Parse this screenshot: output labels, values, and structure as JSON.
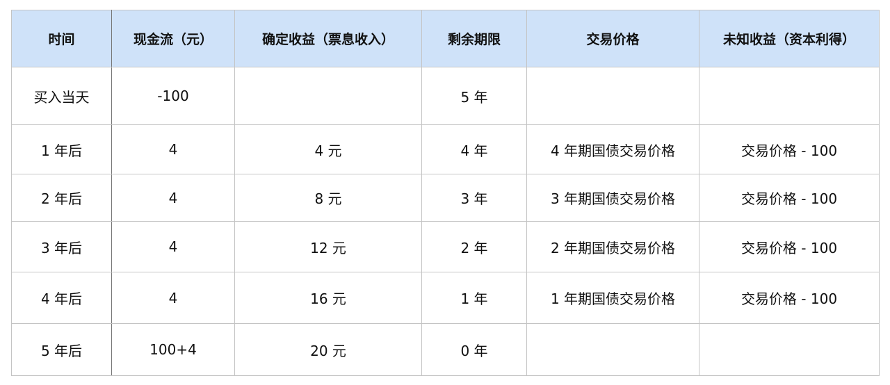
{
  "table": {
    "headers": [
      "时间",
      "现金流（元）",
      "确定收益（票息收入）",
      "剩余期限",
      "交易价格",
      "未知收益（资本利得）"
    ],
    "rows": [
      [
        "买入当天",
        "-100",
        "",
        "5 年",
        "",
        ""
      ],
      [
        "1 年后",
        "4",
        "4 元",
        "4 年",
        "4 年期国债交易价格",
        "交易价格 - 100"
      ],
      [
        "2 年后",
        "4",
        "8 元",
        "3 年",
        "3 年期国债交易价格",
        "交易价格 - 100"
      ],
      [
        "3 年后",
        "4",
        "12 元",
        "2 年",
        "2 年期国债交易价格",
        "交易价格 - 100"
      ],
      [
        "4 年后",
        "4",
        "16 元",
        "1 年",
        "1 年期国债交易价格",
        "交易价格 - 100"
      ],
      [
        "5 年后",
        "100+4",
        "20 元",
        "0 年",
        "",
        ""
      ]
    ],
    "header_color": "#cfe2f9"
  }
}
